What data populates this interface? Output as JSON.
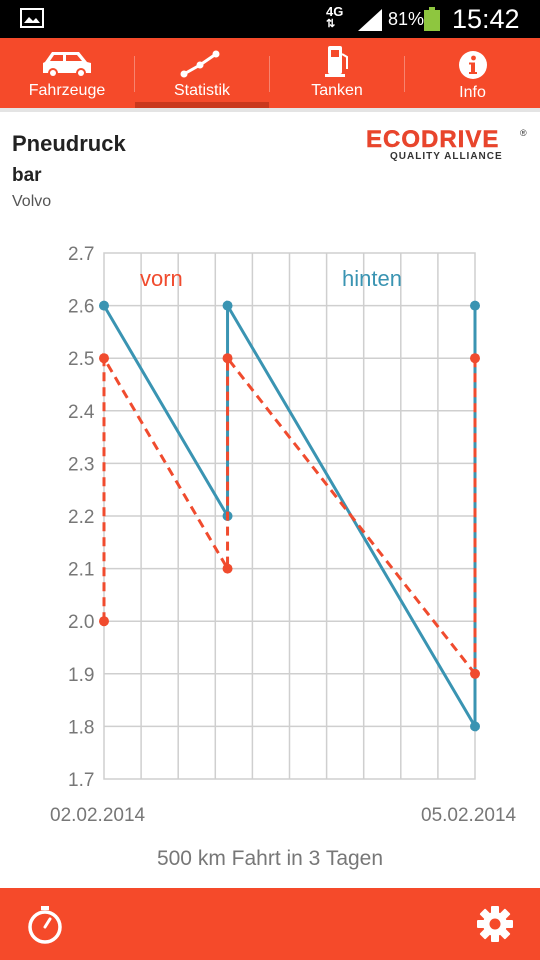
{
  "status_bar": {
    "network": "4G",
    "battery": "81%",
    "time": "15:42",
    "icons": [
      "gallery-icon",
      "signal-icon",
      "battery-icon"
    ]
  },
  "tabs": [
    {
      "label": "Fahrzeuge",
      "icon": "car-icon",
      "active": false
    },
    {
      "label": "Statistik",
      "icon": "chart-line-icon",
      "active": true
    },
    {
      "label": "Tanken",
      "icon": "fuel-pump-icon",
      "active": false
    },
    {
      "label": "Info",
      "icon": "info-icon",
      "active": false
    }
  ],
  "header": {
    "title": "Pneudruck",
    "unit": "bar",
    "vehicle": "Volvo",
    "logo": {
      "brand": "ECODRIVE",
      "registered": "®",
      "tagline": "QUALITY ALLIANCE"
    }
  },
  "chart_data": {
    "type": "line",
    "ylim": [
      1.7,
      2.7
    ],
    "y_ticks": [
      "2.7",
      "2.6",
      "2.5",
      "2.4",
      "2.3",
      "2.2",
      "2.1",
      "2.0",
      "1.9",
      "1.8",
      "1.7"
    ],
    "x_range_days": [
      0,
      10
    ],
    "grid": true,
    "legend_position": "top",
    "series": [
      {
        "name": "vorn",
        "color": "#f04b2e",
        "style": "dashed",
        "points": [
          [
            0,
            2.0
          ],
          [
            0,
            2.5
          ],
          [
            3.33,
            2.1
          ],
          [
            3.33,
            2.5
          ],
          [
            10,
            1.9
          ],
          [
            10,
            2.5
          ]
        ]
      },
      {
        "name": "hinten",
        "color": "#3a94b2",
        "style": "solid",
        "points": [
          [
            0,
            2.6
          ],
          [
            3.33,
            2.2
          ],
          [
            3.33,
            2.6
          ],
          [
            10,
            1.8
          ],
          [
            10,
            2.6
          ]
        ]
      }
    ]
  },
  "x_axis": {
    "start_label": "02.02.2014",
    "end_label": "05.02.2014"
  },
  "summary": "500 km Fahrt in 3 Tagen",
  "bottom_bar": {
    "left_icon": "stopwatch-icon",
    "right_icon": "settings-gear-icon"
  },
  "colors": {
    "accent": "#f54a2a",
    "front_series": "#f04b2e",
    "rear_series": "#3a94b2"
  }
}
